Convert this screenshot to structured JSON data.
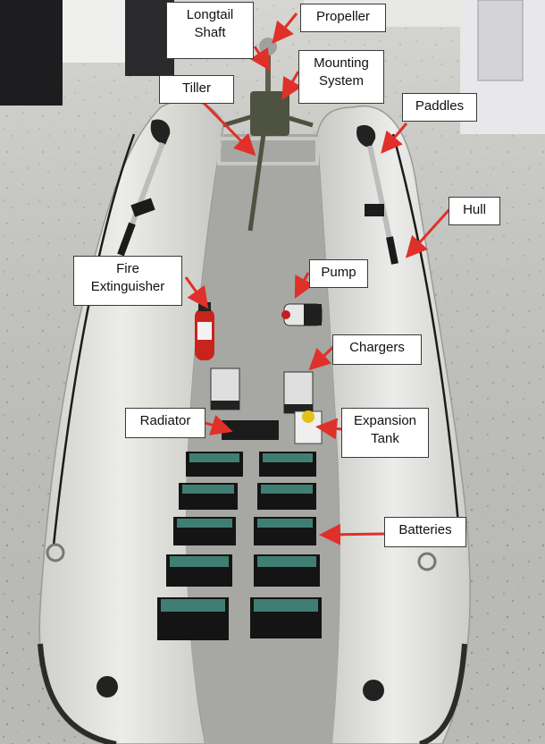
{
  "labels": {
    "propeller": "Propeller",
    "longtail_line1": "Longtail",
    "longtail_line2": "Shaft",
    "mounting_line1": "Mounting",
    "mounting_line2": "System",
    "tiller": "Tiller",
    "paddles": "Paddles",
    "hull": "Hull",
    "fire_line1": "Fire",
    "fire_line2": "Extinguisher",
    "pump": "Pump",
    "chargers": "Chargers",
    "radiator": "Radiator",
    "expansion_line1": "Expansion",
    "expansion_line2": "Tank",
    "batteries": "Batteries"
  },
  "colors": {
    "arrow": "#e0302a",
    "floor_light": "#dcdcd8",
    "floor_dark": "#8c8c88",
    "hull": "#e4e4e0",
    "deck": "#a9a9a5",
    "battery_body": "#1a1a1a",
    "battery_cells": "#3f7f73",
    "extinguisher": "#c8241c"
  }
}
